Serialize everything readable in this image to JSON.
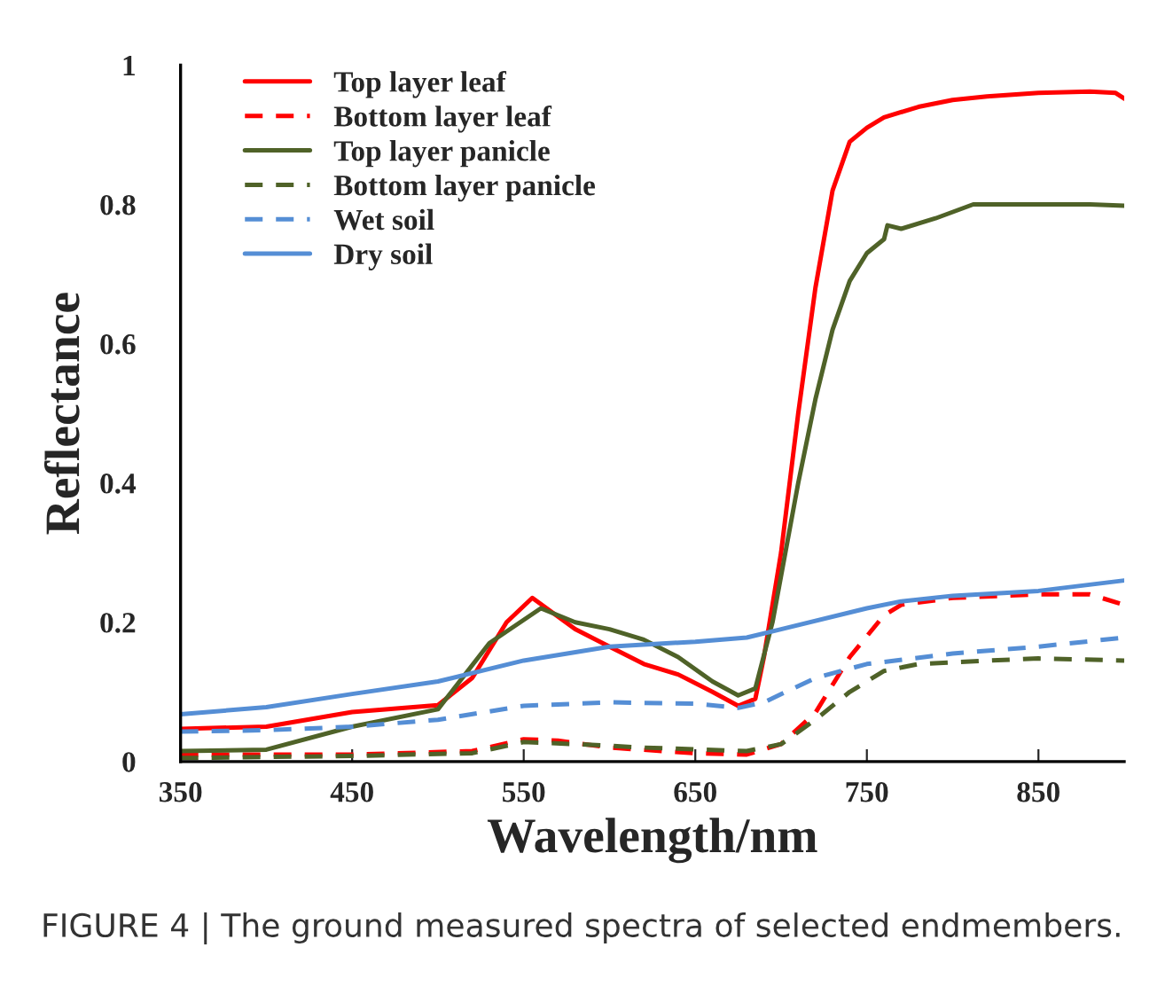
{
  "chart_data": {
    "type": "line",
    "xlabel": "Wavelength/nm",
    "ylabel": "Reflectance",
    "annotations": [
      "FIGURE 4 | The ground measured spectra of selected endmembers."
    ],
    "xlim": [
      350,
      900
    ],
    "ylim": [
      0,
      1
    ],
    "xticks": [
      350,
      450,
      550,
      650,
      750,
      850
    ],
    "yticks": [
      0,
      0.2,
      0.4,
      0.6,
      0.8,
      1
    ],
    "grid": false,
    "legend": "top left",
    "series": [
      {
        "name": "Top layer leaf",
        "color": "#ff0000",
        "line_style": "solid",
        "x": [
          350,
          400,
          450,
          500,
          520,
          540,
          555,
          580,
          600,
          620,
          640,
          660,
          675,
          685,
          690,
          700,
          710,
          720,
          730,
          740,
          750,
          760,
          780,
          800,
          820,
          850,
          880,
          895,
          900
        ],
        "values": [
          0.047,
          0.05,
          0.071,
          0.081,
          0.12,
          0.2,
          0.235,
          0.19,
          0.165,
          0.14,
          0.125,
          0.1,
          0.08,
          0.09,
          0.15,
          0.3,
          0.5,
          0.68,
          0.82,
          0.89,
          0.91,
          0.925,
          0.94,
          0.95,
          0.955,
          0.96,
          0.962,
          0.96,
          0.952
        ]
      },
      {
        "name": "Bottom layer leaf",
        "color": "#ff0000",
        "line_style": "dashed",
        "x": [
          350,
          450,
          520,
          550,
          570,
          600,
          650,
          680,
          700,
          720,
          740,
          760,
          770,
          800,
          850,
          880,
          900
        ],
        "values": [
          0.01,
          0.01,
          0.015,
          0.032,
          0.03,
          0.02,
          0.012,
          0.01,
          0.025,
          0.07,
          0.15,
          0.21,
          0.225,
          0.235,
          0.24,
          0.24,
          0.225
        ]
      },
      {
        "name": "Top layer panicle",
        "color": "#4f6228",
        "line_style": "solid",
        "x": [
          350,
          400,
          450,
          500,
          530,
          560,
          580,
          600,
          620,
          640,
          660,
          675,
          685,
          695,
          710,
          720,
          730,
          740,
          750,
          760,
          762,
          770,
          790,
          812,
          850,
          880,
          900
        ],
        "values": [
          0.015,
          0.017,
          0.05,
          0.075,
          0.17,
          0.22,
          0.2,
          0.19,
          0.175,
          0.15,
          0.115,
          0.095,
          0.105,
          0.2,
          0.4,
          0.52,
          0.62,
          0.69,
          0.73,
          0.75,
          0.77,
          0.765,
          0.78,
          0.8,
          0.8,
          0.8,
          0.798
        ]
      },
      {
        "name": "Bottom layer panicle",
        "color": "#4f6228",
        "line_style": "dashed",
        "x": [
          350,
          450,
          520,
          550,
          580,
          620,
          680,
          700,
          720,
          740,
          760,
          780,
          820,
          850,
          900
        ],
        "values": [
          0.005,
          0.008,
          0.012,
          0.028,
          0.025,
          0.02,
          0.015,
          0.025,
          0.06,
          0.1,
          0.13,
          0.14,
          0.145,
          0.148,
          0.145
        ]
      },
      {
        "name": "Wet soil",
        "color": "#558ed5",
        "line_style": "dashed",
        "x": [
          350,
          400,
          450,
          500,
          550,
          600,
          650,
          675,
          690,
          720,
          750,
          800,
          850,
          900
        ],
        "values": [
          0.043,
          0.045,
          0.05,
          0.06,
          0.08,
          0.085,
          0.083,
          0.077,
          0.085,
          0.12,
          0.14,
          0.155,
          0.165,
          0.178
        ]
      },
      {
        "name": "Dry soil",
        "color": "#558ed5",
        "line_style": "solid",
        "x": [
          350,
          400,
          450,
          500,
          550,
          600,
          650,
          680,
          700,
          750,
          770,
          800,
          850,
          900
        ],
        "values": [
          0.068,
          0.078,
          0.097,
          0.115,
          0.145,
          0.165,
          0.172,
          0.178,
          0.19,
          0.22,
          0.23,
          0.238,
          0.245,
          0.26
        ]
      }
    ]
  }
}
